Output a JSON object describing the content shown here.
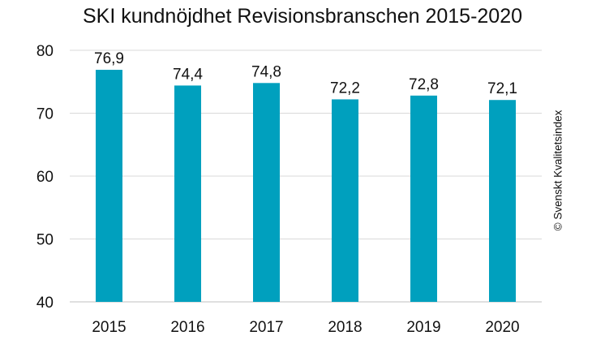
{
  "chart_data": {
    "type": "bar",
    "title": "SKI kundnöjdhet Revisionsbranschen 2015-2020",
    "categories": [
      "2015",
      "2016",
      "2017",
      "2018",
      "2019",
      "2020"
    ],
    "values": [
      76.9,
      74.4,
      74.8,
      72.2,
      72.8,
      72.1
    ],
    "value_labels": [
      "76,9",
      "74,4",
      "74,8",
      "72,2",
      "72,8",
      "72,1"
    ],
    "ylim": [
      40,
      80
    ],
    "yticks": [
      40,
      50,
      60,
      70,
      80
    ],
    "grid": true,
    "xlabel": "",
    "ylabel": "",
    "bar_color": "#00a0be"
  },
  "copyright": "© Svenskt Kvalitetsindex"
}
